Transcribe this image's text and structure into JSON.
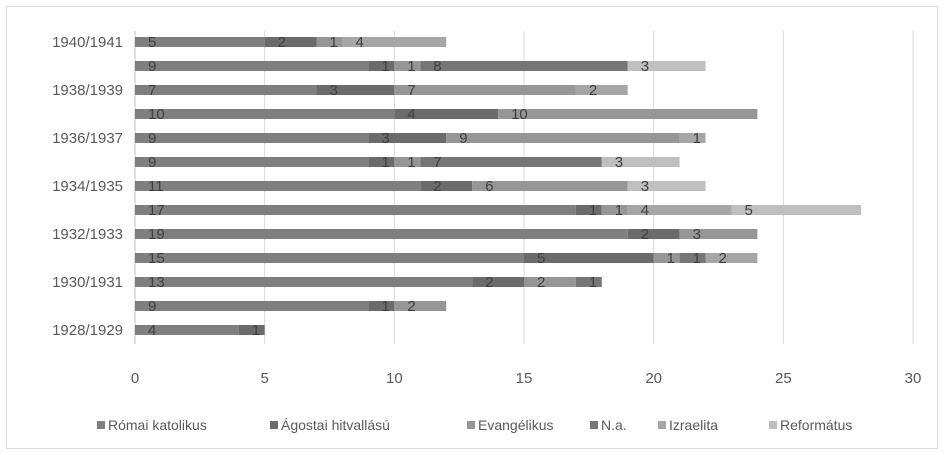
{
  "chart_data": {
    "type": "bar",
    "orientation": "horizontal",
    "stacked": true,
    "categories": [
      "1928/1929",
      "",
      "1930/1931",
      "",
      "1932/1933",
      "",
      "1934/1935",
      "",
      "1936/1937",
      "",
      "1938/1939",
      "",
      "1940/1941"
    ],
    "series": [
      {
        "name": "Római katolikus",
        "color": "#7f7f7f",
        "values": [
          4,
          9,
          13,
          15,
          19,
          17,
          11,
          9,
          9,
          10,
          7,
          9,
          5
        ]
      },
      {
        "name": "Ágostai hitvallású",
        "color": "#6b6b6b",
        "values": [
          1,
          1,
          2,
          5,
          2,
          1,
          2,
          1,
          3,
          4,
          3,
          1,
          2
        ]
      },
      {
        "name": "Evangélikus",
        "color": "#969696",
        "values": [
          null,
          2,
          2,
          1,
          3,
          1,
          6,
          1,
          9,
          10,
          7,
          1,
          1
        ]
      },
      {
        "name": "N.a.",
        "color": "#767676",
        "values": [
          null,
          null,
          1,
          1,
          null,
          null,
          null,
          7,
          null,
          null,
          null,
          8,
          null
        ]
      },
      {
        "name": "Izraelita",
        "color": "#a6a6a6",
        "values": [
          null,
          null,
          null,
          2,
          null,
          4,
          null,
          null,
          1,
          null,
          2,
          null,
          4
        ]
      },
      {
        "name": "Református",
        "color": "#bfbfbf",
        "values": [
          null,
          null,
          null,
          null,
          null,
          5,
          3,
          3,
          null,
          null,
          null,
          3,
          null
        ]
      }
    ],
    "xlim": [
      0,
      30
    ],
    "xticks": [
      0,
      5,
      10,
      15,
      20,
      25,
      30
    ],
    "grid": true,
    "legend_position": "bottom",
    "title": "",
    "xlabel": "",
    "ylabel": ""
  }
}
